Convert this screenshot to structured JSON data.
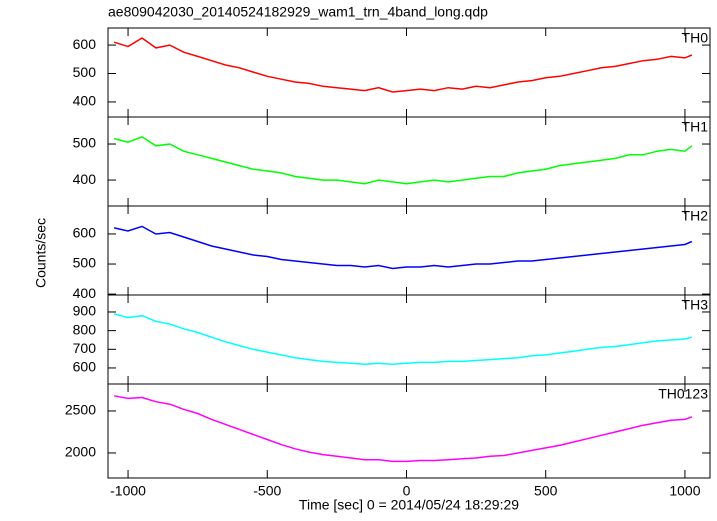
{
  "chart_data": {
    "type": "line",
    "title": "ae809042030_20140524182929_wam1_trn_4band_long.qdp",
    "x_label": "Time [sec] 0 = 2014/05/24 18:29:29",
    "y_label": "Counts/sec",
    "xlim": [
      -1072,
      1090
    ],
    "xticks": [
      -1000,
      -500,
      0,
      500,
      1000
    ],
    "x": [
      -1050,
      -1000,
      -950,
      -900,
      -850,
      -800,
      -750,
      -700,
      -650,
      -600,
      -550,
      -500,
      -450,
      -400,
      -350,
      -300,
      -250,
      -200,
      -150,
      -100,
      -50,
      0,
      50,
      100,
      150,
      200,
      250,
      300,
      350,
      400,
      450,
      500,
      550,
      600,
      650,
      700,
      750,
      800,
      850,
      900,
      950,
      1000,
      1025
    ],
    "series": [
      {
        "name": "TH0",
        "color": "#ff0000",
        "ylim": [
          347,
          660
        ],
        "yticks": [
          400,
          500,
          600
        ],
        "values": [
          610,
          595,
          625,
          590,
          600,
          575,
          560,
          545,
          530,
          520,
          505,
          490,
          480,
          470,
          465,
          455,
          450,
          445,
          440,
          450,
          435,
          440,
          445,
          440,
          450,
          445,
          455,
          450,
          460,
          470,
          475,
          485,
          490,
          500,
          510,
          520,
          525,
          535,
          545,
          550,
          560,
          555,
          565
        ]
      },
      {
        "name": "TH1",
        "color": "#00ff00",
        "ylim": [
          328,
          575
        ],
        "yticks": [
          400,
          500
        ],
        "values": [
          515,
          505,
          520,
          495,
          500,
          480,
          470,
          460,
          450,
          440,
          430,
          425,
          420,
          410,
          405,
          400,
          400,
          395,
          390,
          400,
          395,
          390,
          395,
          400,
          395,
          400,
          405,
          410,
          410,
          420,
          425,
          430,
          440,
          445,
          450,
          455,
          460,
          470,
          470,
          480,
          485,
          480,
          495
        ]
      },
      {
        "name": "TH2",
        "color": "#0000ff",
        "ylim": [
          397,
          693
        ],
        "yticks": [
          400,
          500,
          600
        ],
        "values": [
          620,
          610,
          625,
          600,
          605,
          590,
          575,
          560,
          550,
          540,
          530,
          525,
          515,
          510,
          505,
          500,
          495,
          495,
          490,
          495,
          485,
          490,
          490,
          495,
          490,
          495,
          500,
          500,
          505,
          510,
          510,
          515,
          520,
          525,
          530,
          535,
          540,
          545,
          550,
          555,
          560,
          565,
          575
        ]
      },
      {
        "name": "TH3",
        "color": "#00ffff",
        "ylim": [
          514,
          991
        ],
        "yticks": [
          600,
          700,
          800,
          900
        ],
        "values": [
          890,
          870,
          880,
          850,
          835,
          810,
          790,
          765,
          740,
          720,
          700,
          685,
          670,
          655,
          645,
          635,
          630,
          625,
          620,
          625,
          620,
          625,
          630,
          630,
          635,
          635,
          640,
          645,
          650,
          655,
          665,
          670,
          680,
          690,
          700,
          710,
          715,
          725,
          735,
          745,
          750,
          755,
          765
        ]
      },
      {
        "name": "TH0123",
        "color": "#ff00ff",
        "ylim": [
          1702,
          2821
        ],
        "yticks": [
          2000,
          2500
        ],
        "values": [
          2680,
          2650,
          2660,
          2610,
          2580,
          2520,
          2470,
          2400,
          2340,
          2280,
          2220,
          2160,
          2100,
          2050,
          2010,
          1980,
          1960,
          1940,
          1920,
          1920,
          1900,
          1900,
          1910,
          1910,
          1920,
          1930,
          1940,
          1960,
          1970,
          2000,
          2030,
          2060,
          2090,
          2130,
          2170,
          2210,
          2250,
          2290,
          2330,
          2360,
          2390,
          2400,
          2430
        ]
      }
    ]
  }
}
